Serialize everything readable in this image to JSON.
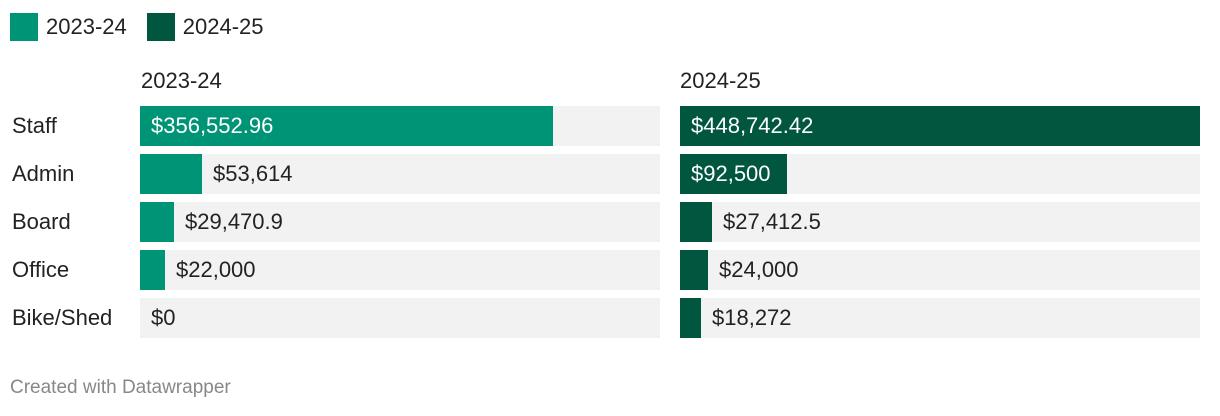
{
  "chart_data": {
    "type": "bar",
    "categories": [
      "Staff",
      "Admin",
      "Board",
      "Office",
      "Bike/Shed"
    ],
    "series": [
      {
        "name": "2023-24",
        "color": "#009477",
        "values": [
          356552.96,
          53614,
          29470.9,
          22000,
          0
        ],
        "value_labels": [
          "$356,552.96",
          "$53,614",
          "$29,470.9",
          "$22,000",
          "$0"
        ]
      },
      {
        "name": "2024-25",
        "color": "#00563f",
        "values": [
          448742.42,
          92500,
          27412.5,
          24000,
          18272
        ],
        "value_labels": [
          "$448,742.42",
          "$92,500",
          "$27,412.5",
          "$24,000",
          "$18,272"
        ]
      }
    ],
    "xlim": [
      0,
      448742.42
    ],
    "legend": "top-left"
  },
  "legend": {
    "items": [
      {
        "label": "2023-24",
        "color": "#009477"
      },
      {
        "label": "2024-25",
        "color": "#00563f"
      }
    ]
  },
  "panels": {
    "titles": [
      "2023-24",
      "2024-25"
    ]
  },
  "footer": {
    "credit": "Created with Datawrapper"
  },
  "colors": {
    "track": "#f2f2f2",
    "text": "#222222",
    "muted": "#888888"
  }
}
